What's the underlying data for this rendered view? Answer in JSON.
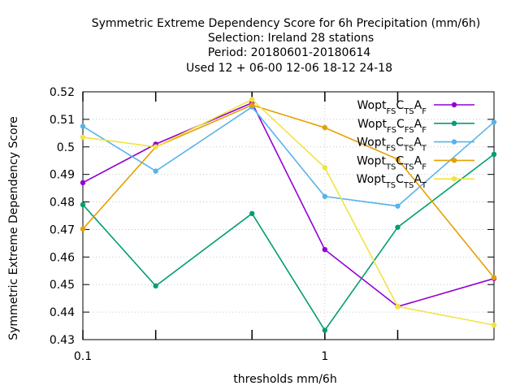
{
  "chart_data": {
    "type": "line",
    "title_lines": [
      "Symmetric Extreme Dependency Score  for 6h Precipitation (mm/6h)",
      "Selection: Ireland     28 stations",
      "Period: 20180601-20180614",
      "Used  12 + 06-00 12-06 18-12 24-18"
    ],
    "xlabel": "thresholds mm/6h",
    "ylabel": "Symmetric Extreme Dependency Score",
    "x_scale": "log",
    "xlim": [
      0.1,
      5
    ],
    "ylim": [
      0.43,
      0.52
    ],
    "x_ticks": [
      {
        "value": 0.1,
        "label": "0.1"
      },
      {
        "value": 1,
        "label": "1"
      }
    ],
    "x_minor_ticks": [
      0.2,
      0.5,
      2
    ],
    "y_ticks": [
      {
        "value": 0.43,
        "label": "0.43"
      },
      {
        "value": 0.44,
        "label": "0.44"
      },
      {
        "value": 0.45,
        "label": "0.45"
      },
      {
        "value": 0.46,
        "label": "0.46"
      },
      {
        "value": 0.47,
        "label": "0.47"
      },
      {
        "value": 0.48,
        "label": "0.48"
      },
      {
        "value": 0.49,
        "label": "0.49"
      },
      {
        "value": 0.5,
        "label": "0.5"
      },
      {
        "value": 0.51,
        "label": "0.51"
      },
      {
        "value": 0.52,
        "label": "0.52"
      }
    ],
    "grid": true,
    "legend_position": "top-right",
    "x": [
      0.1,
      0.2,
      0.5,
      1,
      2,
      5
    ],
    "series": [
      {
        "name": "Wopt",
        "sub1": "FS",
        "c": "C",
        "sub2": "TS",
        "a": "A",
        "sub3": "F",
        "color": "#9400d3",
        "marker": "circle",
        "values": [
          0.487,
          0.501,
          0.516,
          0.4627,
          0.442,
          0.4522
        ]
      },
      {
        "name": "Wopt",
        "sub1": "FS",
        "c": "C",
        "sub2": "FS",
        "a": "A",
        "sub3": "F",
        "color": "#009e73",
        "marker": "circle",
        "values": [
          0.479,
          0.4495,
          0.4758,
          0.4334,
          0.4708,
          0.4973
        ]
      },
      {
        "name": "Wopt",
        "sub1": "FS",
        "c": "C",
        "sub2": "TS",
        "a": "A",
        "sub3": "T",
        "color": "#56b4e9",
        "marker": "circle",
        "values": [
          0.5075,
          0.4912,
          0.5145,
          0.482,
          0.4785,
          0.509
        ]
      },
      {
        "name": "Wopt",
        "sub1": "TS",
        "c": "C",
        "sub2": "TS",
        "a": "A",
        "sub3": "F",
        "color": "#e69f00",
        "marker": "circle",
        "values": [
          0.4702,
          0.5,
          0.5152,
          0.507,
          0.4955,
          0.4525
        ]
      },
      {
        "name": "Wopt",
        "sub1": "TS",
        "c": "C",
        "sub2": "TS",
        "a": "A",
        "sub3": "T",
        "color": "#f0e442",
        "marker": "circle",
        "values": [
          0.5035,
          0.5,
          0.5172,
          0.4925,
          0.442,
          0.4353
        ]
      }
    ]
  }
}
